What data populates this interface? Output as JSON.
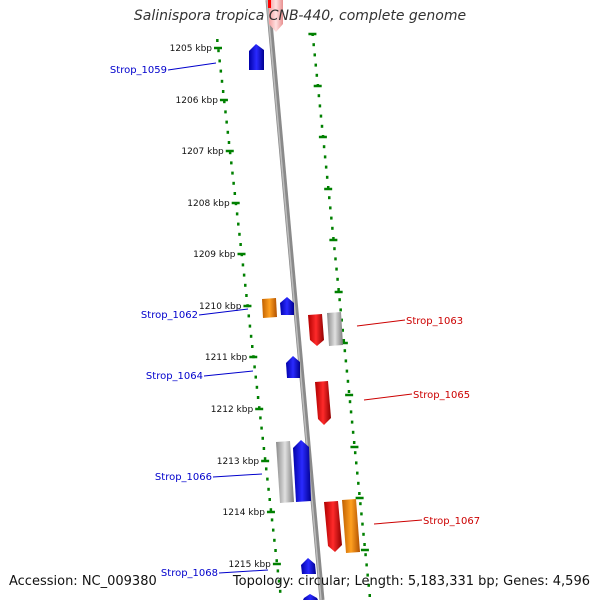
{
  "title": "Salinispora tropica CNB-440, complete genome",
  "footer": {
    "accession": "Accession: NC_009380",
    "summary": "Topology: circular; Length: 5,183,331 bp; Genes: 4,596"
  },
  "colors": {
    "forward_gene": "#ff0000",
    "reverse_gene": "#0000ff",
    "orange_gene": "#ff8c00",
    "gray_gene": "#b4b4b4",
    "backbone": "#8a8a8a",
    "tick": "#008000"
  },
  "scale_ticks": [
    "1205 kbp",
    "1206 kbp",
    "1207 kbp",
    "1208 kbp",
    "1209 kbp",
    "1210 kbp",
    "1211 kbp",
    "1212 kbp",
    "1213 kbp",
    "1214 kbp",
    "1215 kbp"
  ],
  "gene_labels": [
    {
      "name": "Strop_1059",
      "strand": "reverse"
    },
    {
      "name": "Strop_1062",
      "strand": "reverse"
    },
    {
      "name": "Strop_1063",
      "strand": "forward"
    },
    {
      "name": "Strop_1064",
      "strand": "reverse"
    },
    {
      "name": "Strop_1065",
      "strand": "forward"
    },
    {
      "name": "Strop_1066",
      "strand": "reverse"
    },
    {
      "name": "Strop_1067",
      "strand": "forward"
    },
    {
      "name": "Strop_1068",
      "strand": "reverse"
    }
  ]
}
